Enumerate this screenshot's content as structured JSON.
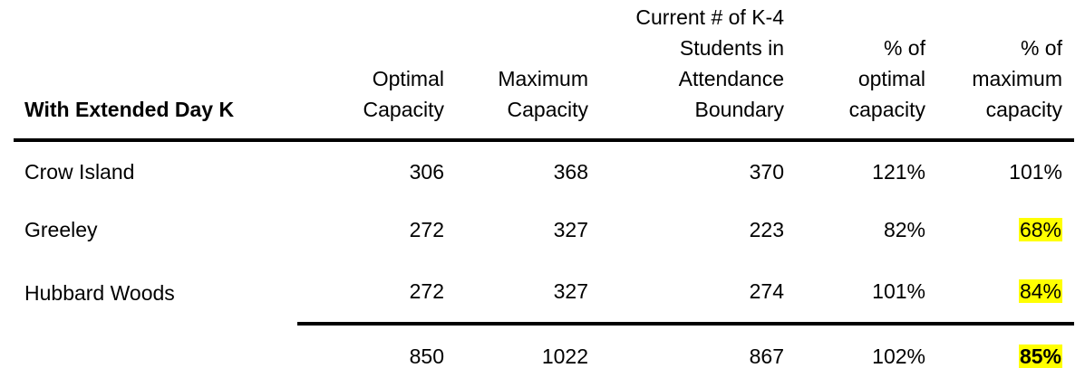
{
  "table": {
    "title": "With Extended Day K",
    "columns": [
      "Optimal\nCapacity",
      "Maximum\nCapacity",
      "Current # of K-4\nStudents in\nAttendance\nBoundary",
      "% of\noptimal\ncapacity",
      "% of\nmaximum\ncapacity"
    ],
    "rows": [
      {
        "name": "Crow Island",
        "optimal": "306",
        "maximum": "368",
        "current": "370",
        "pct_optimal": "121%",
        "pct_maximum": "101%"
      },
      {
        "name": "Greeley",
        "optimal": "272",
        "maximum": "327",
        "current": "223",
        "pct_optimal": "82%",
        "pct_maximum": "68%"
      },
      {
        "name": "Hubbard Woods",
        "optimal": "272",
        "maximum": "327",
        "current": "274",
        "pct_optimal": "101%",
        "pct_maximum": "84%"
      }
    ],
    "totals": {
      "optimal": "850",
      "maximum": "1022",
      "current": "867",
      "pct_optimal": "102%",
      "pct_maximum": "85%"
    },
    "highlight_color": "#ffff00"
  }
}
